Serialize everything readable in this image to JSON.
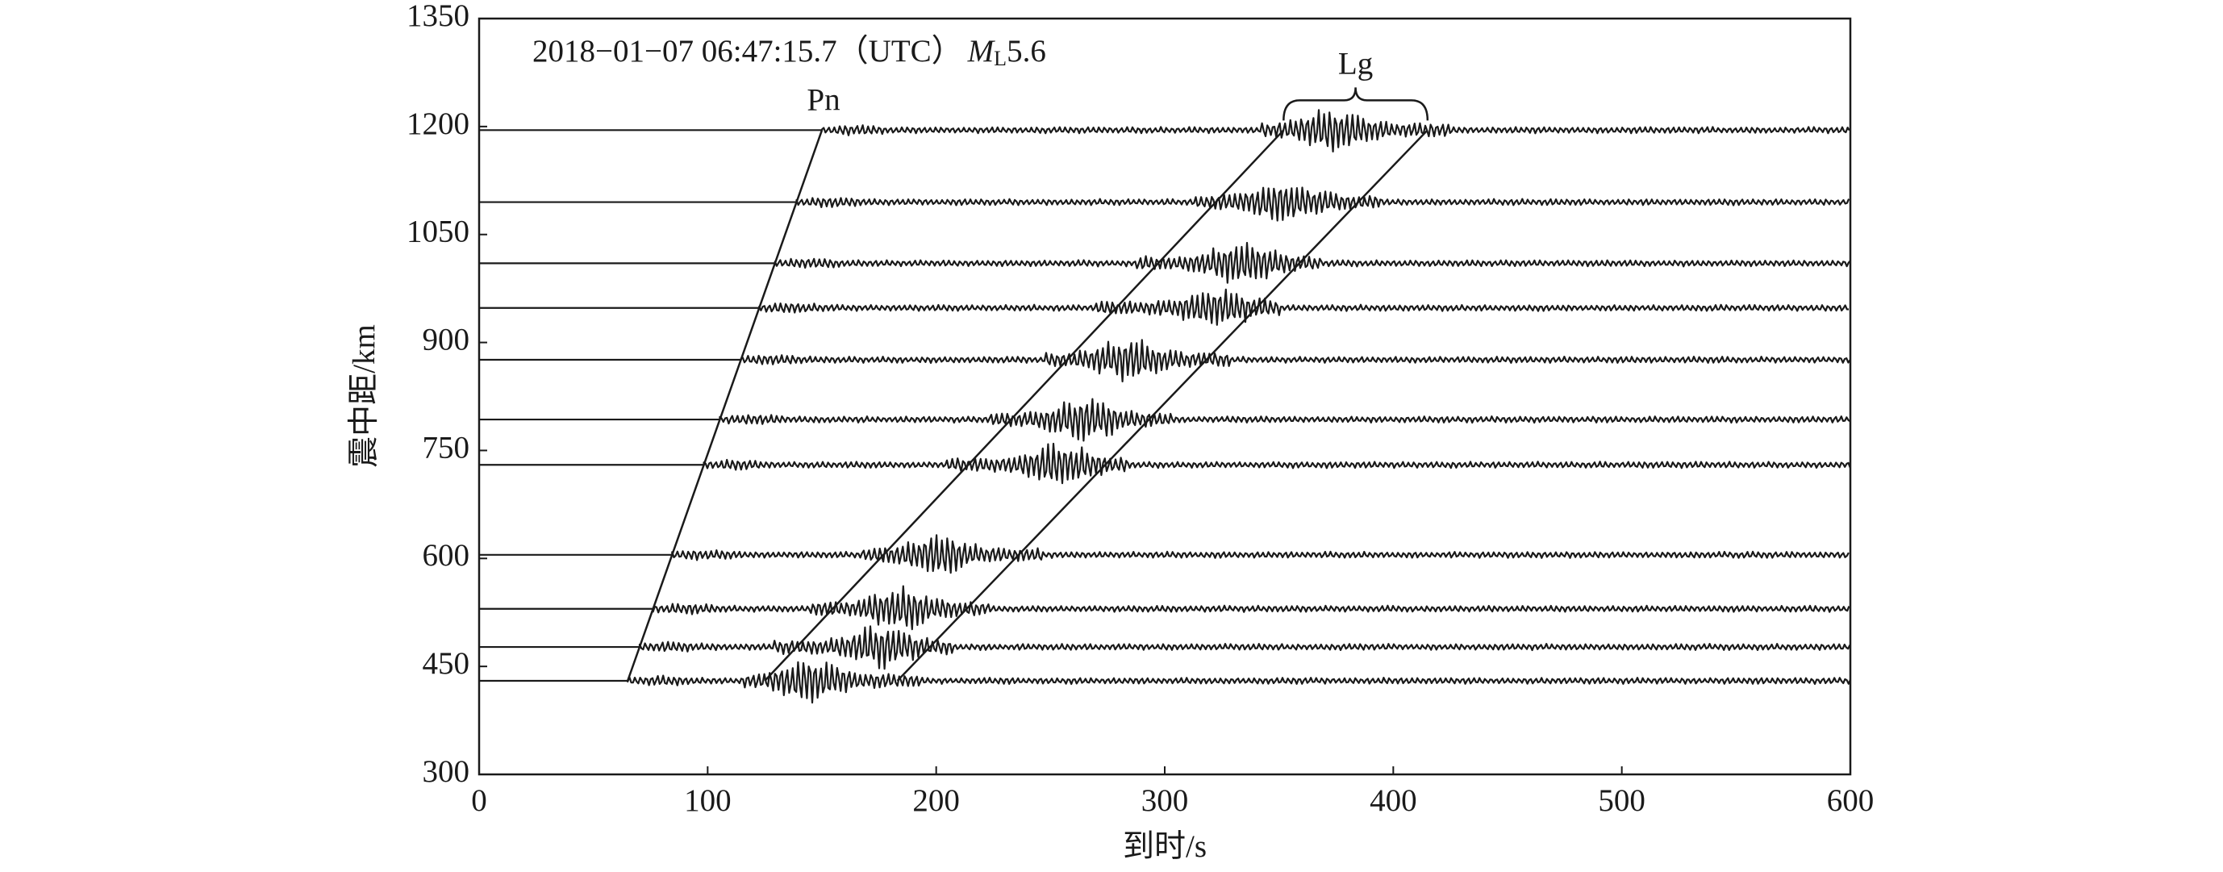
{
  "chart_data": {
    "type": "record-section",
    "title": "2018−01−07 06:47:15.7（UTC）",
    "magnitude_symbol": "M",
    "magnitude_subscript": "L",
    "magnitude": 5.6,
    "x_label": "到时/s",
    "y_label": "震中距/km",
    "xlim": [
      0,
      600
    ],
    "xticks": [
      0,
      100,
      200,
      300,
      400,
      500,
      600
    ],
    "ylim": [
      300,
      1350
    ],
    "yticks": [
      300,
      450,
      600,
      750,
      900,
      1050,
      1200,
      1350
    ],
    "traces": [
      430,
      477,
      530,
      605,
      730,
      793,
      876,
      948,
      1010,
      1095,
      1195
    ],
    "phases": [
      {
        "name": "Pn",
        "lines": [
          {
            "x": [
              65,
              150
            ],
            "y": [
              430,
              1195
            ]
          }
        ]
      },
      {
        "name": "Lg",
        "lines": [
          {
            "x": [
              125,
              352
            ],
            "y": [
              430,
              1195
            ]
          },
          {
            "x": [
              183,
              415
            ],
            "y": [
              430,
              1195
            ]
          }
        ]
      }
    ],
    "color": "#1a1a1a"
  }
}
